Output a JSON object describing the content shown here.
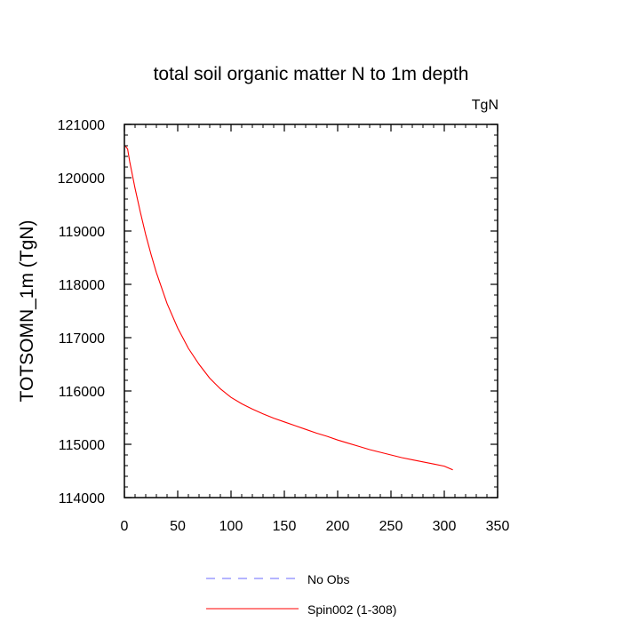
{
  "chart_data": {
    "type": "line",
    "title": "total soil organic matter N to 1m depth",
    "units_label": "TgN",
    "xlabel": "",
    "ylabel": "TOTSOMN_1m  (TgN)",
    "xlim": [
      0,
      350
    ],
    "ylim": [
      114000,
      121000
    ],
    "x_ticks": [
      0,
      50,
      100,
      150,
      200,
      250,
      300,
      350
    ],
    "y_ticks": [
      114000,
      115000,
      116000,
      117000,
      118000,
      119000,
      120000,
      121000
    ],
    "x_tick_labels": [
      "0",
      "50",
      "100",
      "150",
      "200",
      "250",
      "300",
      "350"
    ],
    "y_tick_labels": [
      "114000",
      "115000",
      "116000",
      "117000",
      "118000",
      "119000",
      "120000",
      "121000"
    ],
    "legend_position": "bottom",
    "series": [
      {
        "name": "No Obs",
        "color": "#6a6aff",
        "dash": "dashed",
        "x": [],
        "y": []
      },
      {
        "name": "Spin002 (1-308)",
        "color": "#ff0000",
        "dash": "solid",
        "x": [
          1,
          3,
          5,
          10,
          15,
          20,
          25,
          30,
          40,
          50,
          60,
          70,
          80,
          90,
          100,
          110,
          120,
          130,
          140,
          150,
          160,
          170,
          180,
          190,
          200,
          210,
          220,
          230,
          240,
          250,
          260,
          270,
          280,
          290,
          300,
          308
        ],
        "y": [
          120590,
          120540,
          120300,
          119800,
          119350,
          118930,
          118560,
          118220,
          117640,
          117180,
          116800,
          116500,
          116240,
          116040,
          115880,
          115760,
          115660,
          115570,
          115490,
          115420,
          115350,
          115280,
          115210,
          115150,
          115080,
          115020,
          114960,
          114900,
          114850,
          114800,
          114750,
          114710,
          114670,
          114630,
          114590,
          114520
        ]
      }
    ]
  }
}
